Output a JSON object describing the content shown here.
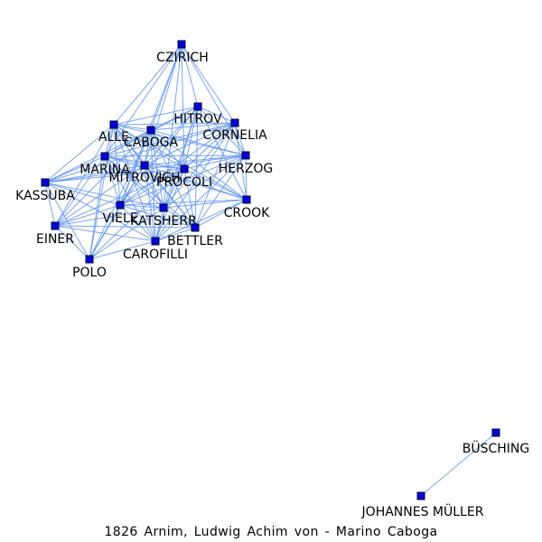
{
  "caption": "1826  Arnim,  Ludwig  Achim  von  -  Marino Caboga",
  "colors": {
    "edge": "#6495ED",
    "node_fill": "#0000DD",
    "node_stroke": "#000033",
    "label": "#000000"
  },
  "graph": {
    "nodes": [
      {
        "id": "CZIRICH",
        "label": "CZIRICH"
      },
      {
        "id": "HITROV",
        "label": "HITROV"
      },
      {
        "id": "CORNELIA",
        "label": "CORNELIA"
      },
      {
        "id": "ALLE",
        "label": "ALLE"
      },
      {
        "id": "CABOGA",
        "label": "CABOGA"
      },
      {
        "id": "HERZOG",
        "label": "HERZOG"
      },
      {
        "id": "MARINA",
        "label": "MARINA"
      },
      {
        "id": "MITROVICH",
        "label": "MITROVICH"
      },
      {
        "id": "PROCOLI",
        "label": "PROCOLI"
      },
      {
        "id": "KASSUBA",
        "label": "KASSUBA"
      },
      {
        "id": "CROOK",
        "label": "CROOK"
      },
      {
        "id": "VIELE",
        "label": "VIELE"
      },
      {
        "id": "KATSHERR",
        "label": "KATSHERR"
      },
      {
        "id": "BETTLER",
        "label": "BETTLER"
      },
      {
        "id": "EINER",
        "label": "EINER"
      },
      {
        "id": "CAROFILLI",
        "label": "CAROFILLI"
      },
      {
        "id": "POLO",
        "label": "POLO"
      },
      {
        "id": "BUSCHING",
        "label": "BÜSCHING"
      },
      {
        "id": "JOHANNES_MULLER",
        "label": "JOHANNES MÜLLER"
      }
    ],
    "edges": [
      [
        "CZIRICH",
        "HITROV"
      ],
      [
        "CZIRICH",
        "CORNELIA"
      ],
      [
        "CZIRICH",
        "ALLE"
      ],
      [
        "CZIRICH",
        "CABOGA"
      ],
      [
        "CZIRICH",
        "HERZOG"
      ],
      [
        "CZIRICH",
        "MARINA"
      ],
      [
        "CZIRICH",
        "MITROVICH"
      ],
      [
        "CZIRICH",
        "PROCOLI"
      ],
      [
        "CZIRICH",
        "KATSHERR"
      ],
      [
        "CZIRICH",
        "VIELE"
      ],
      [
        "HITROV",
        "CORNELIA"
      ],
      [
        "HITROV",
        "ALLE"
      ],
      [
        "HITROV",
        "CABOGA"
      ],
      [
        "HITROV",
        "HERZOG"
      ],
      [
        "HITROV",
        "MARINA"
      ],
      [
        "HITROV",
        "MITROVICH"
      ],
      [
        "HITROV",
        "PROCOLI"
      ],
      [
        "HITROV",
        "VIELE"
      ],
      [
        "HITROV",
        "KATSHERR"
      ],
      [
        "HITROV",
        "BETTLER"
      ],
      [
        "HITROV",
        "CROOK"
      ],
      [
        "HITROV",
        "CAROFILLI"
      ],
      [
        "CORNELIA",
        "ALLE"
      ],
      [
        "CORNELIA",
        "CABOGA"
      ],
      [
        "CORNELIA",
        "HERZOG"
      ],
      [
        "CORNELIA",
        "MARINA"
      ],
      [
        "CORNELIA",
        "MITROVICH"
      ],
      [
        "CORNELIA",
        "PROCOLI"
      ],
      [
        "CORNELIA",
        "CROOK"
      ],
      [
        "CORNELIA",
        "VIELE"
      ],
      [
        "CORNELIA",
        "KATSHERR"
      ],
      [
        "CORNELIA",
        "BETTLER"
      ],
      [
        "CORNELIA",
        "CAROFILLI"
      ],
      [
        "CORNELIA",
        "KASSUBA"
      ],
      [
        "ALLE",
        "CABOGA"
      ],
      [
        "ALLE",
        "HERZOG"
      ],
      [
        "ALLE",
        "MARINA"
      ],
      [
        "ALLE",
        "MITROVICH"
      ],
      [
        "ALLE",
        "PROCOLI"
      ],
      [
        "ALLE",
        "KASSUBA"
      ],
      [
        "ALLE",
        "VIELE"
      ],
      [
        "ALLE",
        "KATSHERR"
      ],
      [
        "ALLE",
        "BETTLER"
      ],
      [
        "ALLE",
        "EINER"
      ],
      [
        "ALLE",
        "CAROFILLI"
      ],
      [
        "ALLE",
        "POLO"
      ],
      [
        "ALLE",
        "CROOK"
      ],
      [
        "CABOGA",
        "HERZOG"
      ],
      [
        "CABOGA",
        "MARINA"
      ],
      [
        "CABOGA",
        "MITROVICH"
      ],
      [
        "CABOGA",
        "PROCOLI"
      ],
      [
        "CABOGA",
        "KASSUBA"
      ],
      [
        "CABOGA",
        "CROOK"
      ],
      [
        "CABOGA",
        "VIELE"
      ],
      [
        "CABOGA",
        "KATSHERR"
      ],
      [
        "CABOGA",
        "BETTLER"
      ],
      [
        "CABOGA",
        "EINER"
      ],
      [
        "CABOGA",
        "CAROFILLI"
      ],
      [
        "CABOGA",
        "POLO"
      ],
      [
        "HERZOG",
        "MARINA"
      ],
      [
        "HERZOG",
        "MITROVICH"
      ],
      [
        "HERZOG",
        "PROCOLI"
      ],
      [
        "HERZOG",
        "CROOK"
      ],
      [
        "HERZOG",
        "VIELE"
      ],
      [
        "HERZOG",
        "KATSHERR"
      ],
      [
        "HERZOG",
        "BETTLER"
      ],
      [
        "HERZOG",
        "CAROFILLI"
      ],
      [
        "HERZOG",
        "KASSUBA"
      ],
      [
        "MARINA",
        "MITROVICH"
      ],
      [
        "MARINA",
        "PROCOLI"
      ],
      [
        "MARINA",
        "KASSUBA"
      ],
      [
        "MARINA",
        "VIELE"
      ],
      [
        "MARINA",
        "KATSHERR"
      ],
      [
        "MARINA",
        "BETTLER"
      ],
      [
        "MARINA",
        "EINER"
      ],
      [
        "MARINA",
        "CAROFILLI"
      ],
      [
        "MARINA",
        "POLO"
      ],
      [
        "MARINA",
        "CROOK"
      ],
      [
        "MITROVICH",
        "PROCOLI"
      ],
      [
        "MITROVICH",
        "KASSUBA"
      ],
      [
        "MITROVICH",
        "CROOK"
      ],
      [
        "MITROVICH",
        "VIELE"
      ],
      [
        "MITROVICH",
        "KATSHERR"
      ],
      [
        "MITROVICH",
        "BETTLER"
      ],
      [
        "MITROVICH",
        "EINER"
      ],
      [
        "MITROVICH",
        "CAROFILLI"
      ],
      [
        "MITROVICH",
        "POLO"
      ],
      [
        "PROCOLI",
        "CROOK"
      ],
      [
        "PROCOLI",
        "VIELE"
      ],
      [
        "PROCOLI",
        "KATSHERR"
      ],
      [
        "PROCOLI",
        "BETTLER"
      ],
      [
        "PROCOLI",
        "CAROFILLI"
      ],
      [
        "PROCOLI",
        "KASSUBA"
      ],
      [
        "PROCOLI",
        "EINER"
      ],
      [
        "PROCOLI",
        "POLO"
      ],
      [
        "KASSUBA",
        "VIELE"
      ],
      [
        "KASSUBA",
        "EINER"
      ],
      [
        "KASSUBA",
        "KATSHERR"
      ],
      [
        "KASSUBA",
        "POLO"
      ],
      [
        "KASSUBA",
        "CAROFILLI"
      ],
      [
        "CROOK",
        "KATSHERR"
      ],
      [
        "CROOK",
        "BETTLER"
      ],
      [
        "CROOK",
        "CAROFILLI"
      ],
      [
        "CROOK",
        "VIELE"
      ],
      [
        "VIELE",
        "KATSHERR"
      ],
      [
        "VIELE",
        "BETTLER"
      ],
      [
        "VIELE",
        "EINER"
      ],
      [
        "VIELE",
        "CAROFILLI"
      ],
      [
        "VIELE",
        "POLO"
      ],
      [
        "KATSHERR",
        "BETTLER"
      ],
      [
        "KATSHERR",
        "CAROFILLI"
      ],
      [
        "KATSHERR",
        "EINER"
      ],
      [
        "KATSHERR",
        "POLO"
      ],
      [
        "BETTLER",
        "CAROFILLI"
      ],
      [
        "BETTLER",
        "EINER"
      ],
      [
        "EINER",
        "CAROFILLI"
      ],
      [
        "EINER",
        "POLO"
      ],
      [
        "CAROFILLI",
        "POLO"
      ],
      [
        "BUSCHING",
        "JOHANNES_MULLER"
      ]
    ]
  }
}
